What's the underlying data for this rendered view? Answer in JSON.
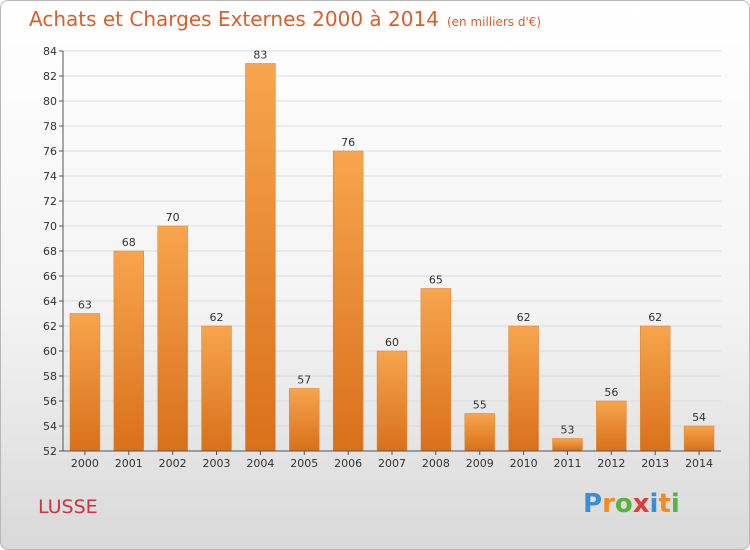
{
  "header": {
    "title": "Achats et Charges Externes 2000 à 2014",
    "unit": "(en milliers d'€)"
  },
  "footer": {
    "city": "LUSSE",
    "logo": [
      "P",
      "r",
      "o",
      "x",
      "i",
      "t",
      "i"
    ],
    "logo_colors": [
      "#3a8fd0",
      "#f28c1e",
      "#56b33c",
      "#e23a3a",
      "#3a8fd0",
      "#f28c1e",
      "#56b33c"
    ]
  },
  "chart_data": {
    "type": "bar",
    "title": "Achats et Charges Externes 2000 à 2014",
    "xlabel": "",
    "ylabel": "",
    "categories": [
      "2000",
      "2001",
      "2002",
      "2003",
      "2004",
      "2005",
      "2006",
      "2007",
      "2008",
      "2009",
      "2010",
      "2011",
      "2012",
      "2013",
      "2014"
    ],
    "values": [
      63,
      68,
      70,
      62,
      83,
      57,
      76,
      60,
      65,
      55,
      62,
      53,
      56,
      62,
      54
    ],
    "ylim": [
      52,
      84
    ],
    "yticks": [
      52,
      54,
      56,
      58,
      60,
      62,
      64,
      66,
      68,
      70,
      72,
      74,
      76,
      78,
      80,
      82,
      84
    ],
    "grid": true,
    "bar_color_top": "#f7a54e",
    "bar_color_bottom": "#d9701a"
  }
}
